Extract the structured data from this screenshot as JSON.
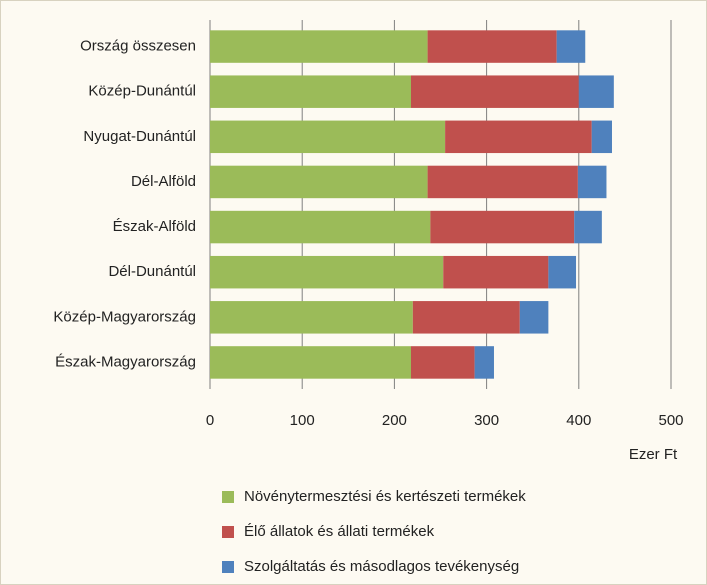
{
  "chart_data": {
    "type": "stacked_barh",
    "categories": [
      "Ország összesen",
      "Közép-Dunántúl",
      "Nyugat-Dunántúl",
      "Dél-Alföld",
      "Észak-Alföld",
      "Dél-Dunántúl",
      "Közép-Magyarország",
      "Észak-Magyarország"
    ],
    "series": [
      {
        "name": "Növénytermesztési és kertészeti termékek",
        "color": "#9bbb59",
        "values": [
          236,
          218,
          255,
          236,
          239,
          253,
          220,
          218
        ]
      },
      {
        "name": "Élő állatok és állati termékek",
        "color": "#c0504d",
        "values": [
          140,
          182,
          159,
          163,
          156,
          114,
          116,
          69
        ]
      },
      {
        "name": "Szolgáltatás és másodlagos tevékenység",
        "color": "#4f81bd",
        "values": [
          31,
          38,
          22,
          31,
          30,
          30,
          31,
          21
        ]
      }
    ],
    "x_label": "Ezer Ft",
    "xlim": [
      0,
      500
    ],
    "xticks": [
      0,
      100,
      200,
      300,
      400,
      500
    ],
    "grid": true
  }
}
